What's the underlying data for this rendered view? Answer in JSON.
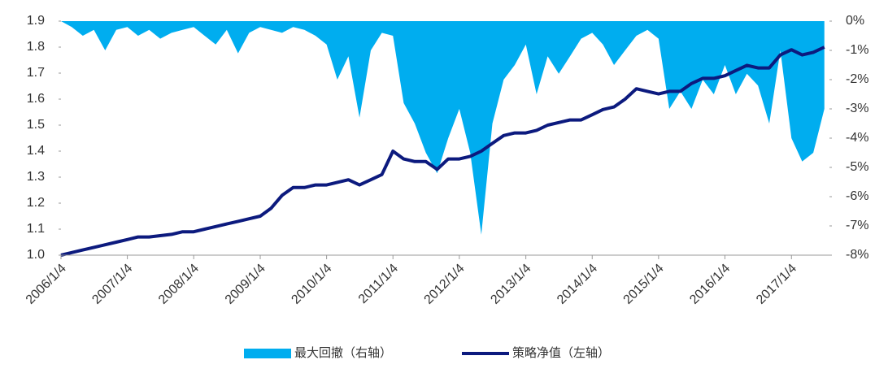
{
  "chart_data": {
    "type": "area-line",
    "x": [
      "2006/1/4",
      "2006/3/4",
      "2006/5/4",
      "2006/7/4",
      "2006/9/4",
      "2006/11/4",
      "2007/1/4",
      "2007/3/4",
      "2007/5/4",
      "2007/7/4",
      "2007/9/4",
      "2007/11/4",
      "2008/1/4",
      "2008/3/4",
      "2008/5/4",
      "2008/7/4",
      "2008/9/4",
      "2008/11/4",
      "2009/1/4",
      "2009/3/4",
      "2009/5/4",
      "2009/7/4",
      "2009/9/4",
      "2009/11/4",
      "2010/1/4",
      "2010/3/4",
      "2010/5/4",
      "2010/7/4",
      "2010/9/4",
      "2010/11/4",
      "2011/1/4",
      "2011/3/4",
      "2011/5/4",
      "2011/7/4",
      "2011/9/4",
      "2011/11/4",
      "2012/1/4",
      "2012/3/4",
      "2012/5/4",
      "2012/7/4",
      "2012/9/4",
      "2012/11/4",
      "2013/1/4",
      "2013/3/4",
      "2013/5/4",
      "2013/7/4",
      "2013/9/4",
      "2013/11/4",
      "2014/1/4",
      "2014/3/4",
      "2014/5/4",
      "2014/7/4",
      "2014/9/4",
      "2014/11/4",
      "2015/1/4",
      "2015/3/4",
      "2015/5/4",
      "2015/7/4",
      "2015/9/4",
      "2015/11/4",
      "2016/1/4",
      "2016/3/4",
      "2016/5/4",
      "2016/7/4",
      "2016/9/4",
      "2016/11/4",
      "2017/1/4",
      "2017/3/4",
      "2017/5/4",
      "2017/7/4"
    ],
    "xlim": [
      "2006/1/4",
      "2017/8/1"
    ],
    "xticks": [
      "2006/1/4",
      "2007/1/4",
      "2008/1/4",
      "2009/1/4",
      "2010/1/4",
      "2011/1/4",
      "2012/1/4",
      "2013/1/4",
      "2014/1/4",
      "2015/1/4",
      "2016/1/4",
      "2017/1/4"
    ],
    "ylim": [
      1.0,
      1.9
    ],
    "yticks": [
      {
        "value": 1.0,
        "label": "1.0"
      },
      1.1,
      1.2,
      1.3,
      1.4,
      1.5,
      1.6,
      1.7,
      1.8,
      1.9
    ],
    "y2lim": [
      -8,
      0
    ],
    "y2ticks": [
      {
        "value": 0,
        "label": "0%"
      },
      {
        "value": -1,
        "label": "-1%"
      },
      {
        "value": -2,
        "label": "-2%"
      },
      {
        "value": -3,
        "label": "-3%"
      },
      {
        "value": -4,
        "label": "-4%"
      },
      {
        "value": -5,
        "label": "-5%"
      },
      {
        "value": -6,
        "label": "-6%"
      },
      {
        "value": -7,
        "label": "-7%"
      },
      {
        "value": -8,
        "label": "-8%"
      }
    ],
    "legend": "bottom",
    "series": [
      {
        "name": "最大回撤（右轴）",
        "color": "#00adef",
        "kind": "area",
        "axis": "y2",
        "values": [
          0,
          -0.2,
          -0.5,
          -0.3,
          -1.0,
          -0.3,
          -0.2,
          -0.5,
          -0.3,
          -0.6,
          -0.4,
          -0.3,
          -0.2,
          -0.5,
          -0.8,
          -0.3,
          -1.1,
          -0.4,
          -0.2,
          -0.3,
          -0.4,
          -0.2,
          -0.3,
          -0.5,
          -0.8,
          -2.0,
          -1.2,
          -3.3,
          -1.0,
          -0.4,
          -0.5,
          -2.8,
          -3.5,
          -4.5,
          -5.2,
          -4.0,
          -3.0,
          -4.5,
          -7.3,
          -3.5,
          -2.0,
          -1.5,
          -0.8,
          -2.5,
          -1.2,
          -1.8,
          -1.2,
          -0.6,
          -0.4,
          -0.8,
          -1.5,
          -1.0,
          -0.5,
          -0.3,
          -0.6,
          -3.0,
          -2.4,
          -3.0,
          -2.0,
          -2.5,
          -1.5,
          -2.5,
          -1.8,
          -2.2,
          -3.5,
          -1.0,
          -4.0,
          -4.8,
          -4.5,
          -3.0
        ]
      },
      {
        "name": "策略净值（左轴）",
        "color": "#0c1a7e",
        "kind": "line",
        "values": [
          1.0,
          1.01,
          1.02,
          1.03,
          1.04,
          1.05,
          1.06,
          1.07,
          1.07,
          1.075,
          1.08,
          1.09,
          1.09,
          1.1,
          1.11,
          1.12,
          1.13,
          1.14,
          1.15,
          1.18,
          1.23,
          1.26,
          1.26,
          1.27,
          1.27,
          1.28,
          1.29,
          1.27,
          1.29,
          1.31,
          1.4,
          1.37,
          1.36,
          1.36,
          1.33,
          1.37,
          1.37,
          1.38,
          1.4,
          1.43,
          1.46,
          1.47,
          1.47,
          1.48,
          1.5,
          1.51,
          1.52,
          1.52,
          1.54,
          1.56,
          1.57,
          1.6,
          1.64,
          1.63,
          1.62,
          1.63,
          1.63,
          1.66,
          1.68,
          1.68,
          1.69,
          1.71,
          1.73,
          1.72,
          1.72,
          1.77,
          1.79,
          1.77,
          1.78,
          1.8
        ]
      }
    ]
  }
}
